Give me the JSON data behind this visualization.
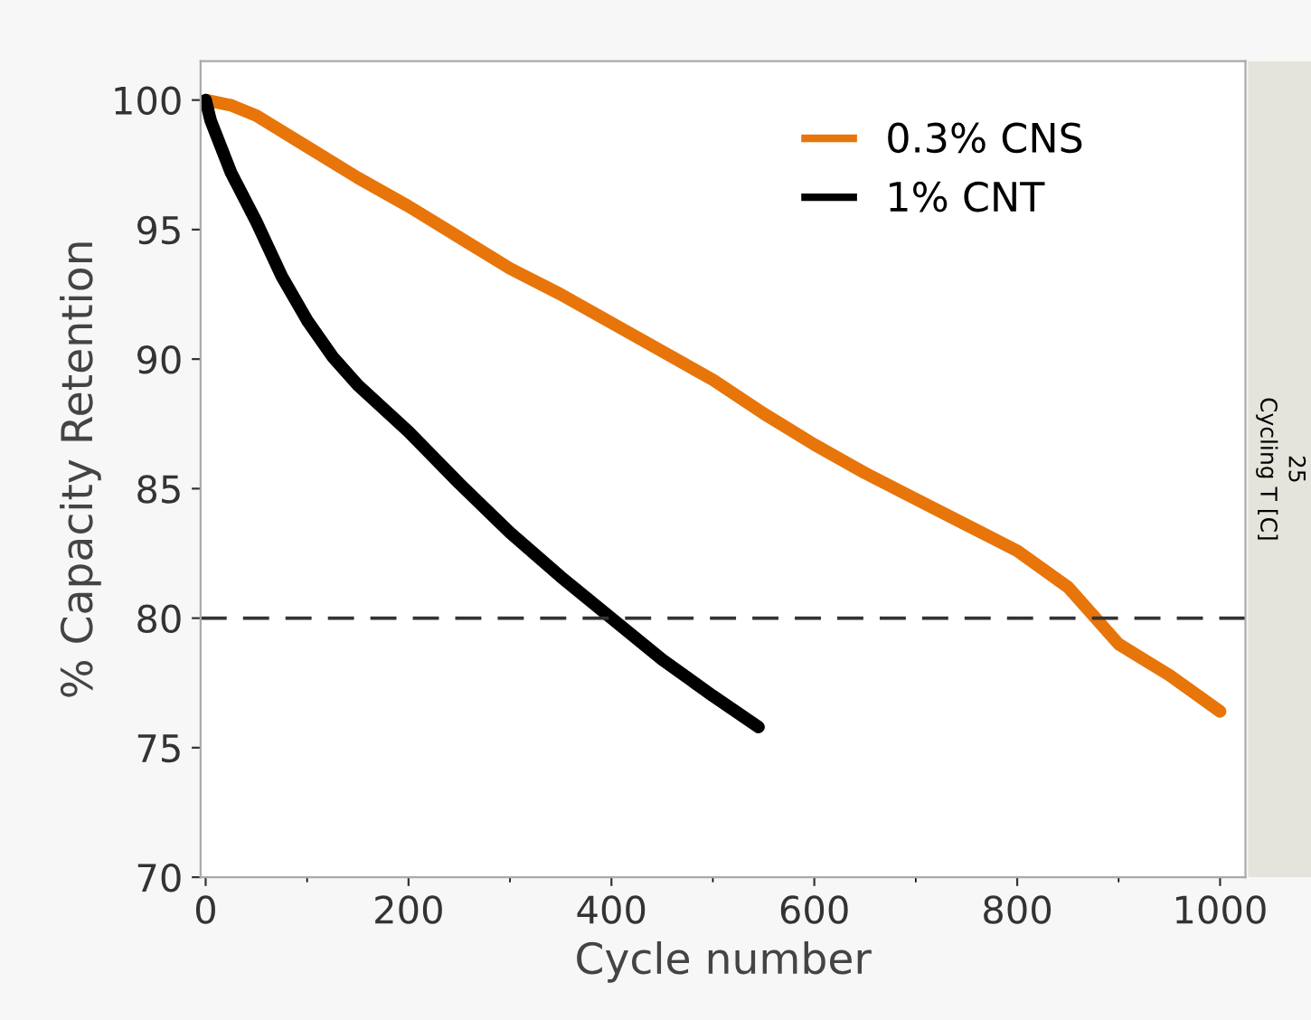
{
  "chart_data": {
    "type": "line",
    "xlabel": "Cycle number",
    "ylabel": "% Capacity Retention",
    "xlim": [
      -5,
      1025
    ],
    "ylim": [
      70,
      101.5
    ],
    "xticks": [
      0,
      200,
      400,
      600,
      800,
      1000
    ],
    "yticks": [
      70,
      75,
      80,
      85,
      90,
      95,
      100
    ],
    "grid": false,
    "legend": "top right",
    "line_style": "solid",
    "marker": "none",
    "ref_lines": [
      {
        "axis": "y",
        "value": 80,
        "line_style": "dashed",
        "color": "#333333"
      }
    ],
    "annotations": [
      "Cycling T [C]",
      "25"
    ],
    "series": [
      {
        "name": "0.3% CNS",
        "color": "#e8750a",
        "x": [
          0,
          25,
          50,
          100,
          150,
          200,
          250,
          300,
          350,
          400,
          450,
          500,
          550,
          600,
          650,
          700,
          750,
          800,
          850,
          900,
          950,
          1000
        ],
        "values": [
          100,
          99.8,
          99.4,
          98.2,
          97.0,
          95.9,
          94.7,
          93.5,
          92.5,
          91.4,
          90.3,
          89.2,
          87.9,
          86.7,
          85.6,
          84.6,
          83.6,
          82.6,
          81.2,
          79.0,
          77.8,
          76.4
        ]
      },
      {
        "name": "1% CNT",
        "color": "#000000",
        "x": [
          0,
          5,
          25,
          50,
          75,
          100,
          125,
          150,
          200,
          250,
          300,
          350,
          400,
          450,
          500,
          545
        ],
        "values": [
          100,
          99.2,
          97.2,
          95.3,
          93.2,
          91.5,
          90.1,
          89.0,
          87.2,
          85.2,
          83.3,
          81.6,
          80.0,
          78.4,
          77.0,
          75.8
        ]
      }
    ]
  }
}
